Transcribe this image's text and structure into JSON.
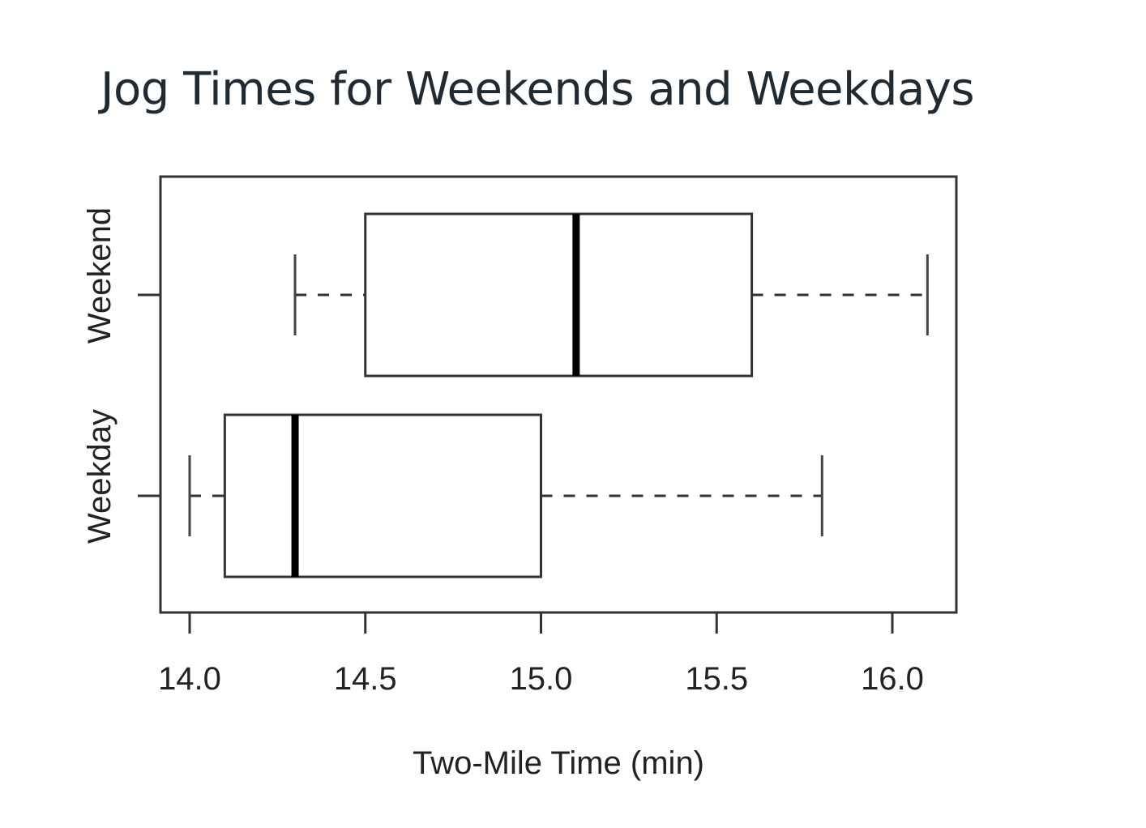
{
  "chart_data": {
    "type": "boxplot",
    "orientation": "horizontal",
    "title": "Jog Times for Weekends and Weekdays",
    "xlabel": "Two-Mile Time (min)",
    "ylabel": "",
    "xlim": [
      13.92,
      16.18
    ],
    "xticks": [
      14.0,
      14.5,
      15.0,
      15.5,
      16.0
    ],
    "xtick_labels": [
      "14.0",
      "14.5",
      "15.0",
      "15.5",
      "16.0"
    ],
    "grid": false,
    "categories": [
      "Weekday",
      "Weekend"
    ],
    "series": [
      {
        "category": "Weekday",
        "min": 14.0,
        "q1": 14.1,
        "median": 14.3,
        "q3": 15.0,
        "max": 15.8
      },
      {
        "category": "Weekend",
        "min": 14.3,
        "q1": 14.5,
        "median": 15.1,
        "q3": 15.6,
        "max": 16.1
      }
    ]
  }
}
